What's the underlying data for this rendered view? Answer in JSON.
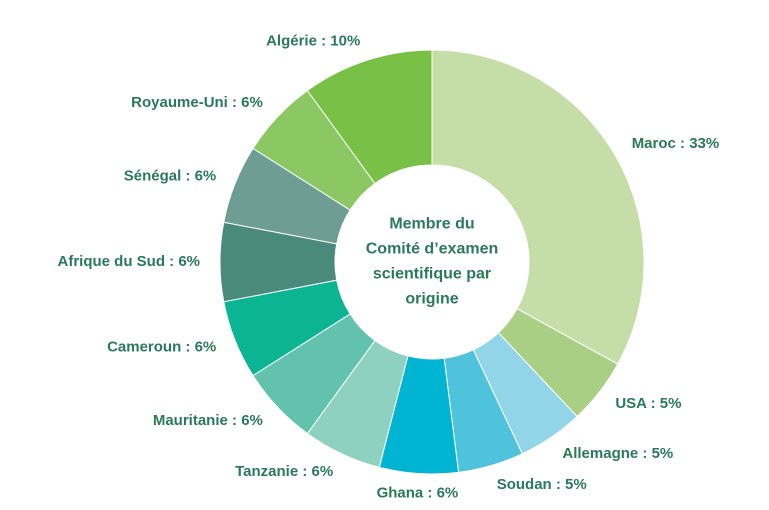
{
  "chart_data": {
    "type": "donut",
    "center_label": [
      "Membre du",
      "Comité d’examen",
      "scientifique par",
      "origine"
    ],
    "values": [
      33,
      5,
      5,
      5,
      6,
      6,
      6,
      6,
      6,
      6,
      6,
      10
    ],
    "value_labels": [
      "Maroc : 33%",
      "USA : 5%",
      "Allemagne : 5%",
      "Soudan : 5%",
      "Ghana : 6%",
      "Tanzanie : 6%",
      "Mauritanie : 6%",
      "Cameroun : 6%",
      "Afrique du Sud : 6%",
      "Sénégal : 6%",
      "Royaume-Uni : 6%",
      "Algérie : 10%"
    ],
    "colors": [
      "#c5dea8",
      "#a9cf85",
      "#93d5e8",
      "#4fc3dc",
      "#00b4d2",
      "#8ed1c0",
      "#62c2ae",
      "#0bb594",
      "#4a8a7d",
      "#6e9e93",
      "#8bc863",
      "#78c046"
    ]
  }
}
